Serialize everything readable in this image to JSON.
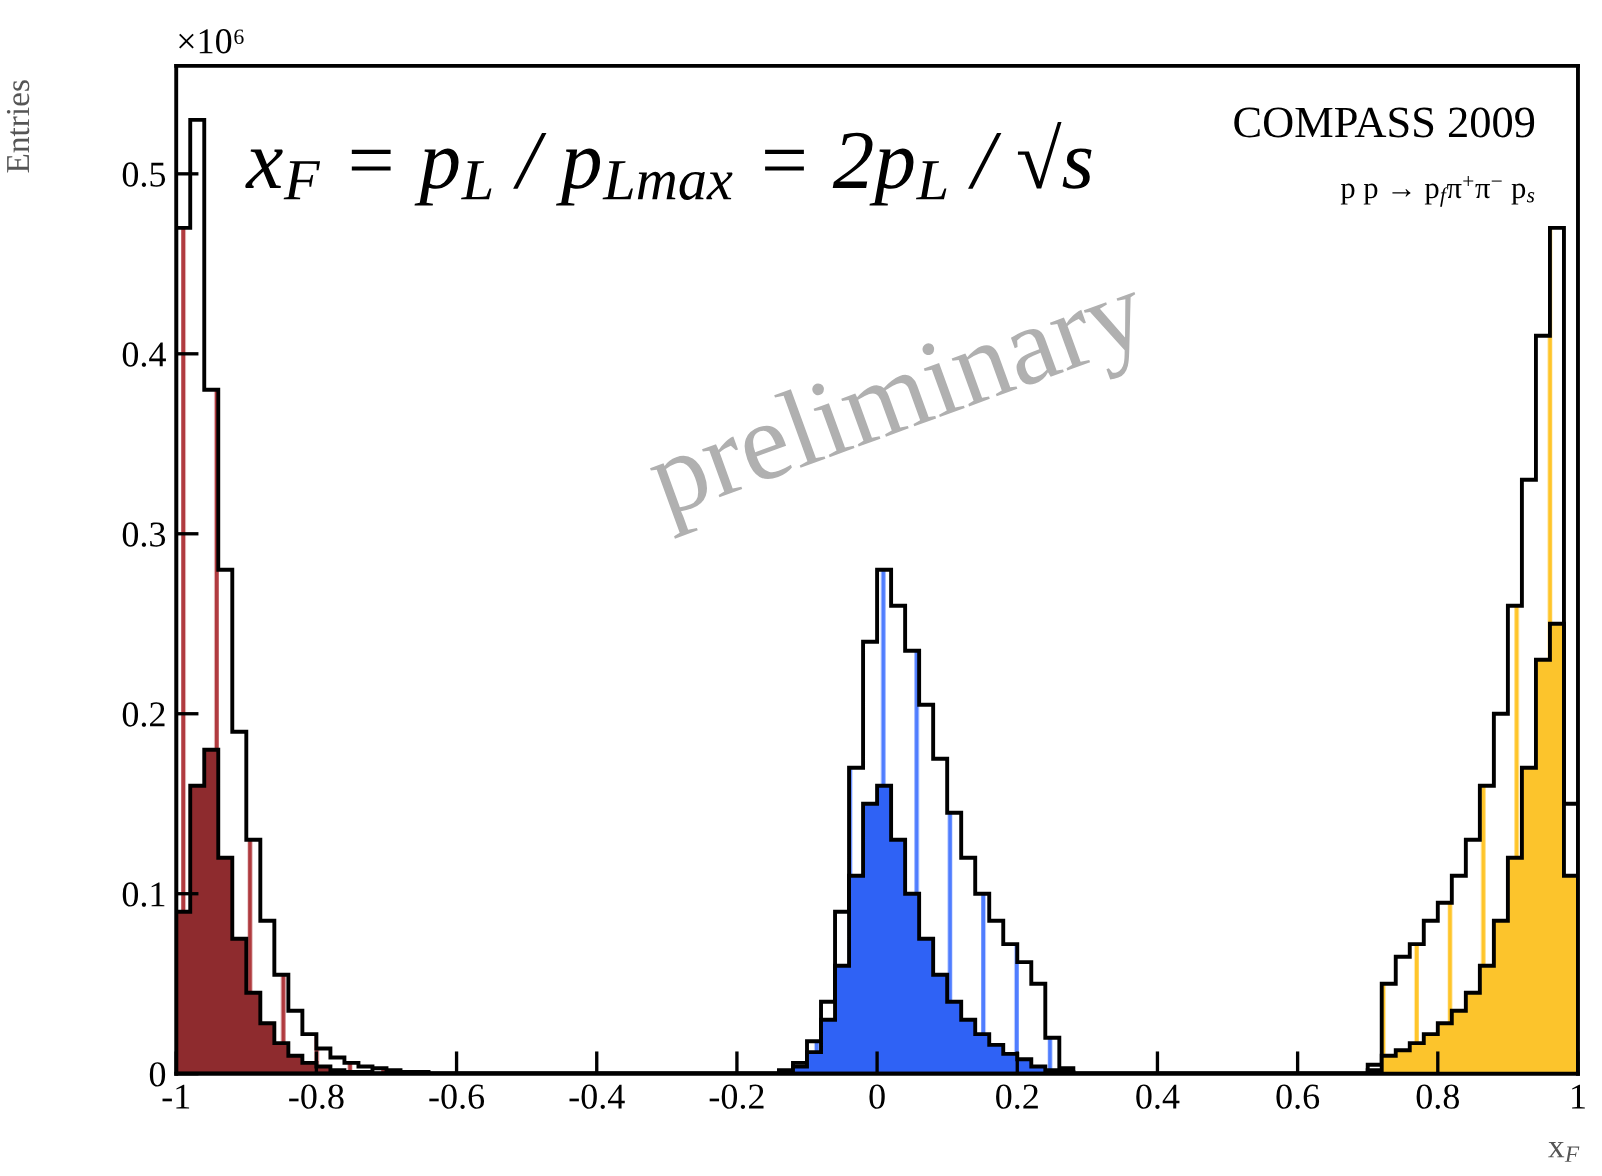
{
  "chart_data": {
    "type": "histogram",
    "xlabel": "x$_{F}$",
    "ylabel": "Entries",
    "annotations": [
      "×10⁶",
      "x$_{F}$ = p$_{L}$ / p$_{Lmax}$ = 2p$_{L}$ / √s",
      "COMPASS 2009",
      "p p → p$_{f}$π$^{+}$π$^{−}$ p$_{s}$",
      "preliminary"
    ],
    "xlim": [
      -1,
      1
    ],
    "ylim": [
      0,
      0.56
    ],
    "xticks": [
      -1,
      -0.8,
      -0.6,
      -0.4,
      -0.2,
      0,
      0.2,
      0.4,
      0.6,
      0.8,
      1
    ],
    "yticks": [
      0,
      0.1,
      0.2,
      0.3,
      0.4,
      0.5
    ],
    "grid": false,
    "bins": [
      -1,
      -0.98,
      -0.96,
      -0.94,
      -0.92,
      -0.9,
      -0.88,
      -0.86,
      -0.84,
      -0.82,
      -0.8,
      -0.78,
      -0.76,
      -0.74,
      -0.72,
      -0.7,
      -0.68,
      -0.66,
      -0.64,
      -0.62,
      -0.6,
      -0.58,
      -0.56,
      -0.54,
      -0.52,
      -0.5,
      -0.48,
      -0.46,
      -0.44,
      -0.42,
      -0.4,
      -0.38,
      -0.36,
      -0.34,
      -0.32,
      -0.3,
      -0.28,
      -0.26,
      -0.24,
      -0.22,
      -0.2,
      -0.18,
      -0.16,
      -0.14,
      -0.12,
      -0.1,
      -0.08,
      -0.06,
      -0.04,
      -0.02,
      0,
      0.02,
      0.04,
      0.06,
      0.08,
      0.1,
      0.12,
      0.14,
      0.16,
      0.18,
      0.2,
      0.22,
      0.24,
      0.26,
      0.28,
      0.3,
      0.32,
      0.34,
      0.36,
      0.38,
      0.4,
      0.42,
      0.44,
      0.46,
      0.48,
      0.5,
      0.52,
      0.54,
      0.56,
      0.58,
      0.6,
      0.62,
      0.64,
      0.66,
      0.68,
      0.7,
      0.72,
      0.74,
      0.76,
      0.78,
      0.8,
      0.82,
      0.84,
      0.86,
      0.88,
      0.9,
      0.92,
      0.94,
      0.96,
      0.98,
      1
    ],
    "series": [
      {
        "color": "#b03a3e",
        "values": [
          0.47,
          0.53,
          0.38,
          0.28,
          0.19,
          0.13,
          0.085,
          0.055,
          0.035,
          0.022,
          0.014,
          0.009,
          0.006,
          0.004,
          0.003,
          0.002,
          0.001,
          0.001,
          0,
          0,
          0,
          0,
          0,
          0,
          0,
          0,
          0,
          0,
          0,
          0,
          0,
          0,
          0,
          0,
          0,
          0,
          0,
          0,
          0,
          0,
          0,
          0,
          0,
          0,
          0,
          0,
          0,
          0,
          0,
          0,
          0,
          0,
          0,
          0,
          0,
          0,
          0,
          0,
          0,
          0,
          0,
          0,
          0,
          0,
          0,
          0,
          0,
          0,
          0,
          0,
          0,
          0,
          0,
          0,
          0,
          0,
          0,
          0,
          0,
          0,
          0,
          0,
          0,
          0,
          0,
          0,
          0,
          0,
          0,
          0,
          0,
          0,
          0,
          0,
          0,
          0,
          0,
          0,
          0,
          0
        ]
      },
      {
        "color": "#4f7dff",
        "values": [
          0,
          0,
          0,
          0,
          0,
          0,
          0,
          0,
          0,
          0,
          0,
          0,
          0,
          0,
          0,
          0,
          0,
          0,
          0,
          0,
          0,
          0,
          0,
          0,
          0,
          0,
          0,
          0,
          0,
          0,
          0,
          0,
          0,
          0,
          0,
          0,
          0,
          0,
          0,
          0,
          0,
          0,
          0,
          0.002,
          0.006,
          0.018,
          0.04,
          0.09,
          0.17,
          0.24,
          0.28,
          0.26,
          0.235,
          0.205,
          0.175,
          0.145,
          0.12,
          0.1,
          0.085,
          0.072,
          0.062,
          0.05,
          0.02,
          0.003,
          0,
          0,
          0,
          0,
          0,
          0,
          0,
          0,
          0,
          0,
          0,
          0,
          0,
          0,
          0,
          0,
          0,
          0,
          0,
          0,
          0,
          0,
          0,
          0,
          0,
          0,
          0,
          0,
          0,
          0,
          0,
          0,
          0,
          0,
          0,
          0
        ]
      },
      {
        "color": "#ffc52a",
        "values": [
          0,
          0,
          0,
          0,
          0,
          0,
          0,
          0,
          0,
          0,
          0,
          0,
          0,
          0,
          0,
          0,
          0,
          0,
          0,
          0,
          0,
          0,
          0,
          0,
          0,
          0,
          0,
          0,
          0,
          0,
          0,
          0,
          0,
          0,
          0,
          0,
          0,
          0,
          0,
          0,
          0,
          0,
          0,
          0,
          0,
          0,
          0,
          0,
          0,
          0,
          0,
          0,
          0,
          0,
          0,
          0,
          0,
          0,
          0,
          0,
          0,
          0,
          0,
          0,
          0,
          0,
          0,
          0,
          0,
          0,
          0,
          0,
          0,
          0,
          0,
          0,
          0,
          0,
          0,
          0,
          0,
          0,
          0,
          0,
          0,
          0.005,
          0.05,
          0.065,
          0.072,
          0.085,
          0.095,
          0.11,
          0.13,
          0.16,
          0.2,
          0.26,
          0.33,
          0.41,
          0.47,
          0.15
        ]
      },
      {
        "color": "#8e2b2e",
        "values": [
          0.09,
          0.16,
          0.18,
          0.12,
          0.075,
          0.045,
          0.028,
          0.017,
          0.01,
          0.006,
          0.004,
          0.002,
          0.001,
          0.001,
          0,
          0,
          0,
          0,
          0,
          0,
          0,
          0,
          0,
          0,
          0,
          0,
          0,
          0,
          0,
          0,
          0,
          0,
          0,
          0,
          0,
          0,
          0,
          0,
          0,
          0,
          0,
          0,
          0,
          0,
          0,
          0,
          0,
          0,
          0,
          0,
          0,
          0,
          0,
          0,
          0,
          0,
          0,
          0,
          0,
          0,
          0,
          0,
          0,
          0,
          0,
          0,
          0,
          0,
          0,
          0,
          0,
          0,
          0,
          0,
          0,
          0,
          0,
          0,
          0,
          0,
          0,
          0,
          0,
          0,
          0,
          0,
          0,
          0,
          0,
          0,
          0,
          0,
          0,
          0,
          0,
          0,
          0,
          0,
          0,
          0
        ]
      },
      {
        "color": "#2f62f5",
        "values": [
          0,
          0,
          0,
          0,
          0,
          0,
          0,
          0,
          0,
          0,
          0,
          0,
          0,
          0,
          0,
          0,
          0,
          0,
          0,
          0,
          0,
          0,
          0,
          0,
          0,
          0,
          0,
          0,
          0,
          0,
          0,
          0,
          0,
          0,
          0,
          0,
          0,
          0,
          0,
          0,
          0,
          0,
          0,
          0.001,
          0.004,
          0.012,
          0.03,
          0.06,
          0.11,
          0.15,
          0.16,
          0.13,
          0.1,
          0.075,
          0.055,
          0.04,
          0.03,
          0.022,
          0.016,
          0.011,
          0.008,
          0.004,
          0.002,
          0.001,
          0,
          0,
          0,
          0,
          0,
          0,
          0,
          0,
          0,
          0,
          0,
          0,
          0,
          0,
          0,
          0,
          0,
          0,
          0,
          0,
          0,
          0,
          0,
          0,
          0,
          0,
          0,
          0,
          0,
          0,
          0,
          0,
          0,
          0,
          0,
          0
        ]
      },
      {
        "color": "#fcc42c",
        "values": [
          0,
          0,
          0,
          0,
          0,
          0,
          0,
          0,
          0,
          0,
          0,
          0,
          0,
          0,
          0,
          0,
          0,
          0,
          0,
          0,
          0,
          0,
          0,
          0,
          0,
          0,
          0,
          0,
          0,
          0,
          0,
          0,
          0,
          0,
          0,
          0,
          0,
          0,
          0,
          0,
          0,
          0,
          0,
          0,
          0,
          0,
          0,
          0,
          0,
          0,
          0,
          0,
          0,
          0,
          0,
          0,
          0,
          0,
          0,
          0,
          0,
          0,
          0,
          0,
          0,
          0,
          0,
          0,
          0,
          0,
          0,
          0,
          0,
          0,
          0,
          0,
          0,
          0,
          0,
          0,
          0,
          0,
          0,
          0,
          0,
          0.002,
          0.01,
          0.013,
          0.017,
          0.022,
          0.028,
          0.035,
          0.045,
          0.06,
          0.085,
          0.12,
          0.17,
          0.23,
          0.25,
          0.11
        ]
      }
    ]
  }
}
